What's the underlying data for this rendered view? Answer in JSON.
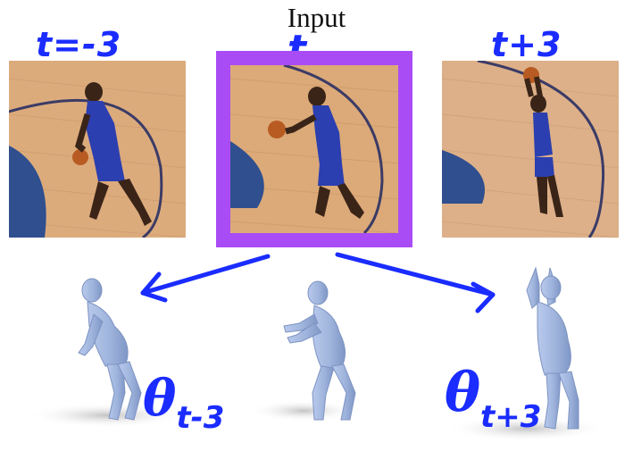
{
  "title": "Input",
  "frames": [
    {
      "label": "t=-3"
    },
    {
      "label": "t"
    },
    {
      "label": "t+3"
    }
  ],
  "poses": [
    {
      "symbol": "θ",
      "subscript": "t-3"
    },
    {
      "symbol": "θ",
      "subscript": "t+3"
    }
  ],
  "colors": {
    "highlight": "#a94cf5",
    "annotation": "#1a2cff",
    "court_wood": "#d8a572",
    "court_paint": "#2f4f8f",
    "body_mesh": "#9fb4dc"
  }
}
